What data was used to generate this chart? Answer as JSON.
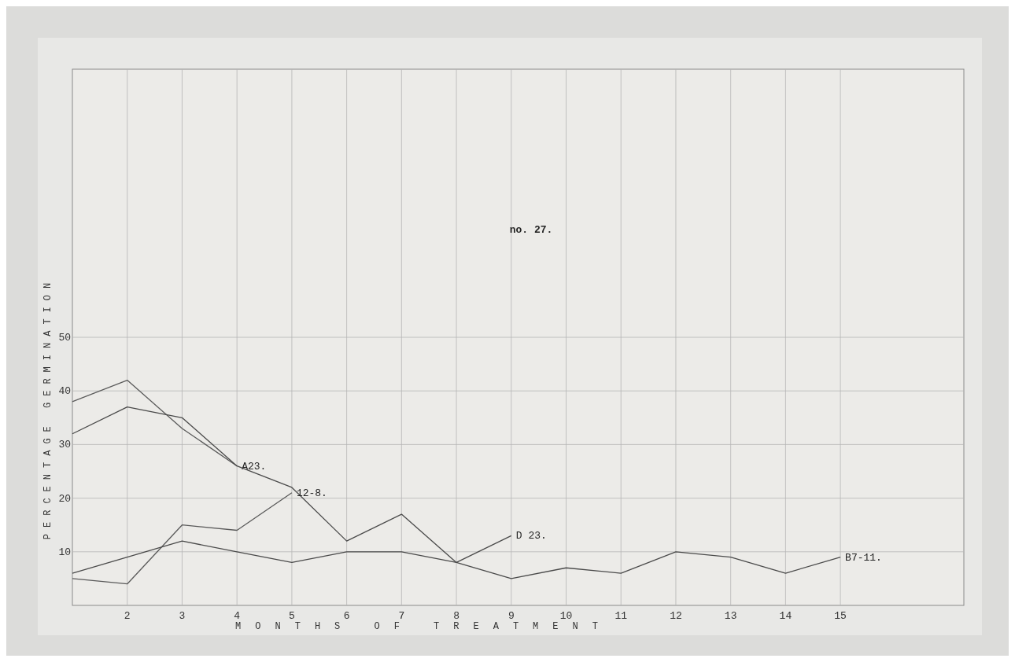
{
  "chart_data": {
    "type": "line",
    "xlabel": "MONTHS OF TREATMENT",
    "ylabel": "PERCENTAGE GERMINATION",
    "annotations": [
      "no. 27."
    ],
    "xlim": [
      1,
      17.25
    ],
    "ylim": [
      0,
      100
    ],
    "xticks": [
      2,
      3,
      4,
      5,
      6,
      7,
      8,
      9,
      10,
      11,
      12,
      13,
      14,
      15
    ],
    "yticks": [
      10,
      20,
      30,
      40,
      50
    ],
    "grid": true,
    "marker": "none",
    "line_style": "solid",
    "series": [
      {
        "name": "A23.",
        "color": "#5a5a5a",
        "x": [
          1,
          2,
          3,
          4
        ],
        "values": [
          38,
          42,
          33,
          26
        ]
      },
      {
        "name": "D 23.",
        "color": "#4a4a4a",
        "x": [
          1,
          2,
          3,
          4,
          5,
          6,
          7,
          8,
          9
        ],
        "values": [
          32,
          37,
          35,
          26,
          22,
          12,
          17,
          8,
          13
        ]
      },
      {
        "name": "12-8.",
        "color": "#5a5a5a",
        "x": [
          1,
          2,
          3,
          4,
          5
        ],
        "values": [
          5,
          4,
          15,
          14,
          21
        ]
      },
      {
        "name": "B7-11.",
        "color": "#4a4a4a",
        "x": [
          1,
          2,
          3,
          4,
          5,
          6,
          7,
          8,
          9,
          10,
          11,
          12,
          13,
          14,
          15
        ],
        "values": [
          6,
          9,
          12,
          10,
          8,
          10,
          10,
          8,
          5,
          7,
          6,
          10,
          9,
          6,
          9
        ]
      }
    ]
  }
}
